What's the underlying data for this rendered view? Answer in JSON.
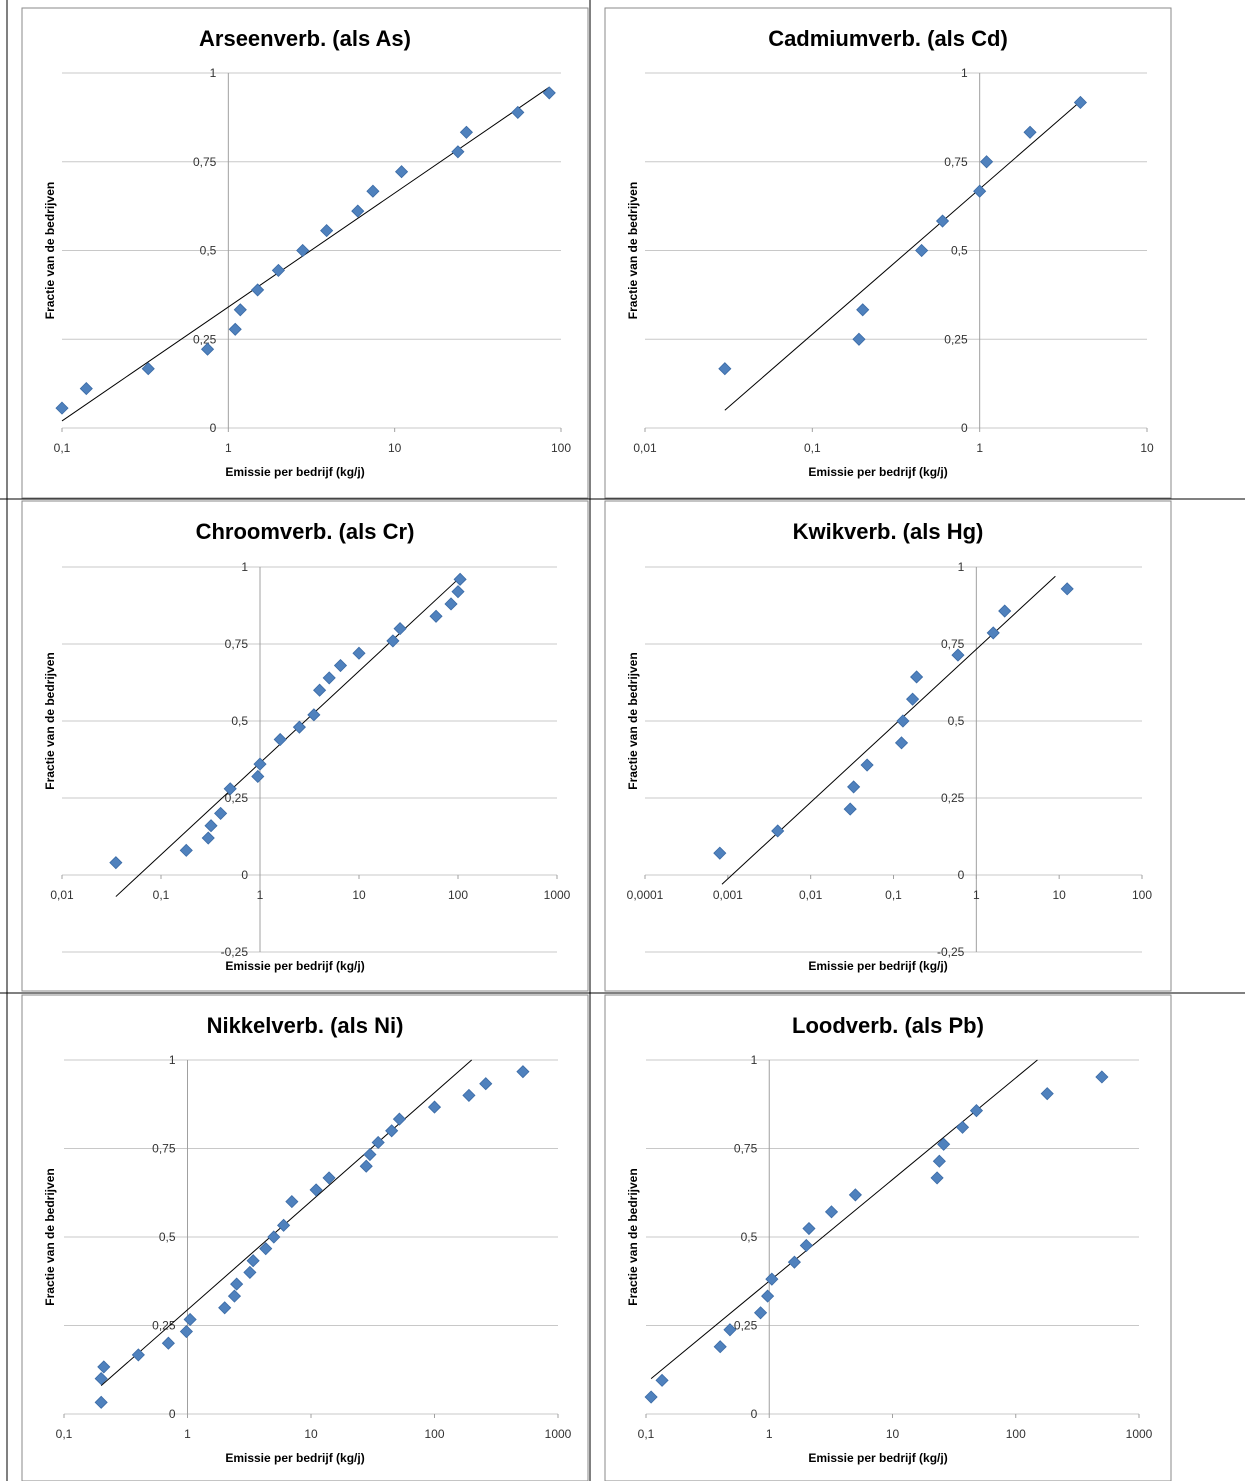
{
  "colors": {
    "marker": "#4F81BD",
    "marker_edge": "#3A6AA5",
    "grid": "#c8c8c8",
    "axis": "#a0a0a0",
    "trendline": "#000000",
    "frame": "#000000"
  },
  "chart_data": [
    {
      "id": "as",
      "type": "scatter",
      "title": "Arseenverb. (als As)",
      "xlabel": "Emissie per bedrijf (kg/j)",
      "ylabel": "Fractie van de bedrijven",
      "xscale": "log",
      "xlim": [
        0.1,
        100
      ],
      "ylim": [
        0,
        1
      ],
      "xticks": [
        "0,1",
        "1",
        "10",
        "100"
      ],
      "yticks": [
        "0",
        "0,25",
        "0,5",
        "0,75",
        "1"
      ],
      "grid": true,
      "trendline": [
        [
          0.1,
          0.02
        ],
        [
          85,
          0.96
        ]
      ],
      "points": [
        [
          0.1,
          0.056
        ],
        [
          0.14,
          0.111
        ],
        [
          0.33,
          0.167
        ],
        [
          0.75,
          0.222
        ],
        [
          1.1,
          0.278
        ],
        [
          1.18,
          0.333
        ],
        [
          1.5,
          0.389
        ],
        [
          2.0,
          0.444
        ],
        [
          2.8,
          0.5
        ],
        [
          3.9,
          0.556
        ],
        [
          6.0,
          0.611
        ],
        [
          7.4,
          0.667
        ],
        [
          11.0,
          0.722
        ],
        [
          24.0,
          0.778
        ],
        [
          27.0,
          0.833
        ],
        [
          55.0,
          0.889
        ],
        [
          85.0,
          0.944
        ]
      ]
    },
    {
      "id": "cd",
      "type": "scatter",
      "title": "Cadmiumverb. (als Cd)",
      "xlabel": "Emissie per bedrijf (kg/j)",
      "ylabel": "Fractie van de bedrijven",
      "xscale": "log",
      "xlim": [
        0.01,
        10
      ],
      "ylim": [
        0,
        1
      ],
      "xticks": [
        "0,01",
        "0,1",
        "1",
        "10"
      ],
      "yticks": [
        "0",
        "0,25",
        "0,5",
        "0,75",
        "1"
      ],
      "grid": true,
      "trendline": [
        [
          0.03,
          0.05
        ],
        [
          4.0,
          0.92
        ]
      ],
      "points": [
        [
          0.03,
          0.167
        ],
        [
          0.19,
          0.25
        ],
        [
          0.2,
          0.333
        ],
        [
          0.45,
          0.5
        ],
        [
          0.6,
          0.583
        ],
        [
          1.0,
          0.667
        ],
        [
          1.1,
          0.75
        ],
        [
          2.0,
          0.833
        ],
        [
          4.0,
          0.917
        ]
      ]
    },
    {
      "id": "cr",
      "type": "scatter",
      "title": "Chroomverb. (als Cr)",
      "xlabel": "Emissie per bedrijf (kg/j)",
      "ylabel": "Fractie van de bedrijven",
      "xscale": "log",
      "xlim": [
        0.01,
        1000
      ],
      "ylim": [
        -0.25,
        1
      ],
      "xticks": [
        "0,01",
        "0,1",
        "1",
        "10",
        "100",
        "1000"
      ],
      "yticks": [
        "-0,25",
        "0",
        "0,25",
        "0,5",
        "0,75",
        "1"
      ],
      "grid": true,
      "trendline": [
        [
          0.035,
          -0.07
        ],
        [
          100,
          0.96
        ]
      ],
      "points": [
        [
          0.035,
          0.04
        ],
        [
          0.18,
          0.08
        ],
        [
          0.3,
          0.12
        ],
        [
          0.32,
          0.16
        ],
        [
          0.4,
          0.2
        ],
        [
          0.5,
          0.28
        ],
        [
          0.95,
          0.32
        ],
        [
          1.0,
          0.36
        ],
        [
          1.6,
          0.44
        ],
        [
          2.5,
          0.48
        ],
        [
          3.5,
          0.52
        ],
        [
          4.0,
          0.6
        ],
        [
          5.0,
          0.64
        ],
        [
          6.5,
          0.68
        ],
        [
          10.0,
          0.72
        ],
        [
          22.0,
          0.76
        ],
        [
          26.0,
          0.8
        ],
        [
          60.0,
          0.84
        ],
        [
          85.0,
          0.88
        ],
        [
          100.0,
          0.92
        ],
        [
          105.0,
          0.96
        ]
      ]
    },
    {
      "id": "hg",
      "type": "scatter",
      "title": "Kwikverb. (als Hg)",
      "xlabel": "Emissie per bedrijf (kg/j)",
      "ylabel": "Fractie van de bedrijven",
      "xscale": "log",
      "xlim": [
        0.0001,
        100
      ],
      "ylim": [
        -0.25,
        1
      ],
      "xticks": [
        "0,0001",
        "0,001",
        "0,01",
        "0,1",
        "1",
        "10",
        "100"
      ],
      "yticks": [
        "-0,25",
        "0",
        "0,25",
        "0,5",
        "0,75",
        "1"
      ],
      "grid": true,
      "trendline": [
        [
          0.00085,
          -0.03
        ],
        [
          9.0,
          0.97
        ]
      ],
      "points": [
        [
          0.0008,
          0.071
        ],
        [
          0.004,
          0.143
        ],
        [
          0.03,
          0.214
        ],
        [
          0.033,
          0.286
        ],
        [
          0.048,
          0.357
        ],
        [
          0.125,
          0.429
        ],
        [
          0.13,
          0.5
        ],
        [
          0.17,
          0.571
        ],
        [
          0.19,
          0.643
        ],
        [
          0.6,
          0.714
        ],
        [
          1.6,
          0.786
        ],
        [
          2.2,
          0.857
        ],
        [
          12.5,
          0.929
        ]
      ]
    },
    {
      "id": "ni",
      "type": "scatter",
      "title": "Nikkelverb. (als Ni)",
      "xlabel": "Emissie per bedrijf (kg/j)",
      "ylabel": "Fractie van de bedrijven",
      "xscale": "log",
      "xlim": [
        0.1,
        1000
      ],
      "ylim": [
        0,
        1
      ],
      "xticks": [
        "0,1",
        "1",
        "10",
        "100",
        "1000"
      ],
      "yticks": [
        "0",
        "0,25",
        "0,5",
        "0,75",
        "1"
      ],
      "grid": true,
      "trendline": [
        [
          0.2,
          0.08
        ],
        [
          200,
          1.0
        ]
      ],
      "points": [
        [
          0.2,
          0.033
        ],
        [
          0.2,
          0.1
        ],
        [
          0.21,
          0.133
        ],
        [
          0.4,
          0.167
        ],
        [
          0.7,
          0.2
        ],
        [
          0.98,
          0.233
        ],
        [
          1.05,
          0.267
        ],
        [
          2.0,
          0.3
        ],
        [
          2.4,
          0.333
        ],
        [
          2.5,
          0.367
        ],
        [
          3.2,
          0.4
        ],
        [
          3.4,
          0.433
        ],
        [
          4.3,
          0.467
        ],
        [
          5.0,
          0.5
        ],
        [
          6.0,
          0.533
        ],
        [
          7.0,
          0.6
        ],
        [
          11.0,
          0.633
        ],
        [
          14.0,
          0.667
        ],
        [
          28.0,
          0.7
        ],
        [
          30.0,
          0.733
        ],
        [
          35.0,
          0.767
        ],
        [
          45.0,
          0.8
        ],
        [
          52.0,
          0.833
        ],
        [
          100.0,
          0.867
        ],
        [
          190.0,
          0.9
        ],
        [
          260.0,
          0.933
        ],
        [
          520.0,
          0.967
        ]
      ]
    },
    {
      "id": "pb",
      "type": "scatter",
      "title": "Loodverb. (als Pb)",
      "xlabel": "Emissie per bedrijf (kg/j)",
      "ylabel": "Fractie van de bedrijven",
      "xscale": "log",
      "xlim": [
        0.1,
        1000
      ],
      "ylim": [
        0,
        1
      ],
      "xticks": [
        "0,1",
        "1",
        "10",
        "100",
        "1000"
      ],
      "yticks": [
        "0",
        "0,25",
        "0,5",
        "0,75",
        "1"
      ],
      "grid": true,
      "trendline": [
        [
          0.11,
          0.1
        ],
        [
          150,
          1.0
        ]
      ],
      "points": [
        [
          0.11,
          0.048
        ],
        [
          0.135,
          0.095
        ],
        [
          0.4,
          0.19
        ],
        [
          0.48,
          0.238
        ],
        [
          0.85,
          0.286
        ],
        [
          0.97,
          0.333
        ],
        [
          1.05,
          0.381
        ],
        [
          1.6,
          0.429
        ],
        [
          2.0,
          0.476
        ],
        [
          2.1,
          0.524
        ],
        [
          3.2,
          0.571
        ],
        [
          5.0,
          0.619
        ],
        [
          23.0,
          0.667
        ],
        [
          24.0,
          0.714
        ],
        [
          26.0,
          0.762
        ],
        [
          37.0,
          0.81
        ],
        [
          48.0,
          0.857
        ],
        [
          180.0,
          0.905
        ],
        [
          500.0,
          0.952
        ]
      ]
    }
  ]
}
